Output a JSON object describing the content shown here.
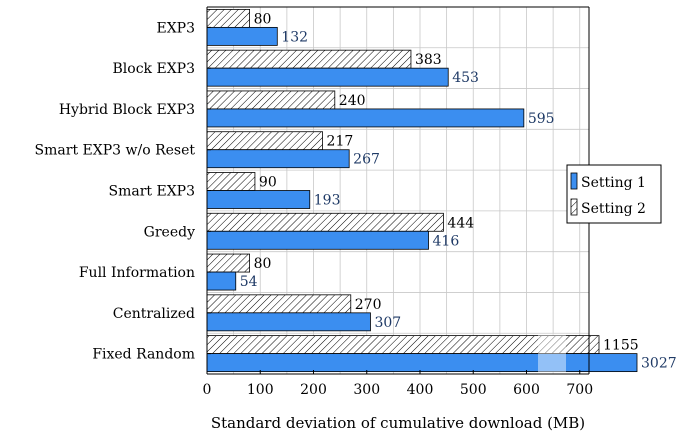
{
  "chart_data": {
    "type": "bar",
    "orientation": "horizontal",
    "categories": [
      "EXP3",
      "Block EXP3",
      "Hybrid Block EXP3",
      "Smart EXP3 w/o Reset",
      "Smart EXP3",
      "Greedy",
      "Full Information",
      "Centralized",
      "Fixed Random"
    ],
    "series": [
      {
        "name": "Setting 1",
        "values": [
          132,
          453,
          595,
          267,
          193,
          416,
          54,
          307,
          3027
        ],
        "color": "#3b8ef0",
        "pattern": "solid"
      },
      {
        "name": "Setting 2",
        "values": [
          80,
          383,
          240,
          217,
          90,
          444,
          80,
          270,
          1155
        ],
        "color": "#ffffff",
        "pattern": "hatched"
      }
    ],
    "xlabel": "Standard deviation of cumulative download (MB)",
    "ylabel": "",
    "xlim": [
      0,
      750
    ],
    "xticks": [
      0,
      100,
      200,
      300,
      400,
      500,
      600,
      700
    ],
    "grid": true,
    "legend_position": "right",
    "axis_break": true
  }
}
